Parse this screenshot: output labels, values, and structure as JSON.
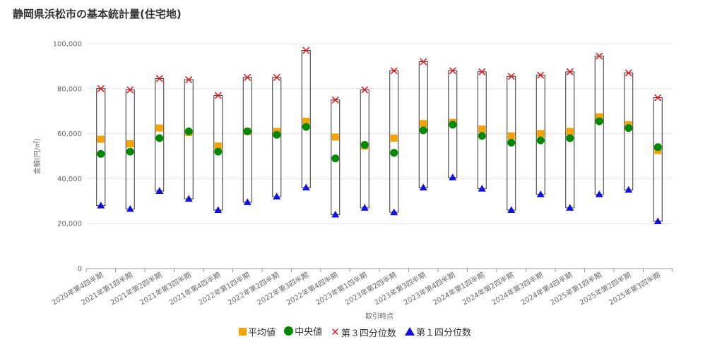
{
  "page": {
    "title": "静岡県浜松市の基本統計量(住宅地)"
  },
  "colors": {
    "mean": "#f5a300",
    "median": "#008800",
    "q3": "#e02020",
    "q1": "#1010e0",
    "box": "#333333",
    "grid": "#e6e6e6"
  },
  "chart_data": {
    "type": "box",
    "title": "静岡県浜松市の基本統計量(住宅地)",
    "xlabel": "取引時点",
    "ylabel": "金額(円/㎡)",
    "ylim": [
      0,
      100000
    ],
    "yticks": [
      0,
      20000,
      40000,
      60000,
      80000,
      100000
    ],
    "ytick_labels": [
      "0",
      "20,000",
      "40,000",
      "60,000",
      "80,000",
      "100,000"
    ],
    "categories": [
      "2020年第4四半期",
      "2021年第1四半期",
      "2021年第2四半期",
      "2021年第3四半期",
      "2021年第4四半期",
      "2022年第1四半期",
      "2022年第2四半期",
      "2022年第3四半期",
      "2022年第4四半期",
      "2023年第1四半期",
      "2023年第2四半期",
      "2023年第3四半期",
      "2023年第4四半期",
      "2024年第1四半期",
      "2024年第2四半期",
      "2024年第3四半期",
      "2024年第4四半期",
      "2025年第1四半期",
      "2025年第2四半期",
      "2025年第3四半期"
    ],
    "series": [
      {
        "name": "平均値",
        "marker": "square",
        "values": [
          57500,
          55500,
          62500,
          60500,
          54500,
          61000,
          61000,
          65500,
          58500,
          54500,
          58000,
          64500,
          65000,
          62000,
          59000,
          60000,
          61000,
          67500,
          64000,
          52500
        ]
      },
      {
        "name": "中央値",
        "marker": "circle",
        "values": [
          51000,
          52000,
          58000,
          61000,
          52000,
          61000,
          59500,
          63000,
          49000,
          55000,
          51500,
          61500,
          64000,
          59000,
          56000,
          57000,
          58000,
          65500,
          62500,
          54000
        ]
      },
      {
        "name": "第３四分位数",
        "marker": "x",
        "values": [
          80000,
          79500,
          84500,
          84000,
          77000,
          85000,
          85000,
          97000,
          75000,
          79500,
          88000,
          92000,
          88000,
          87500,
          85500,
          86000,
          87500,
          94500,
          87000,
          76000
        ]
      },
      {
        "name": "第１四分位数",
        "marker": "triangle",
        "values": [
          28000,
          26500,
          34500,
          31000,
          26000,
          29500,
          32000,
          36000,
          24000,
          27000,
          25000,
          36000,
          40500,
          35500,
          26000,
          33000,
          27000,
          33000,
          35000,
          21000
        ]
      }
    ],
    "legend": [
      "平均値",
      "中央値",
      "第３四分位数",
      "第１四分位数"
    ],
    "legend_position": "bottom"
  }
}
